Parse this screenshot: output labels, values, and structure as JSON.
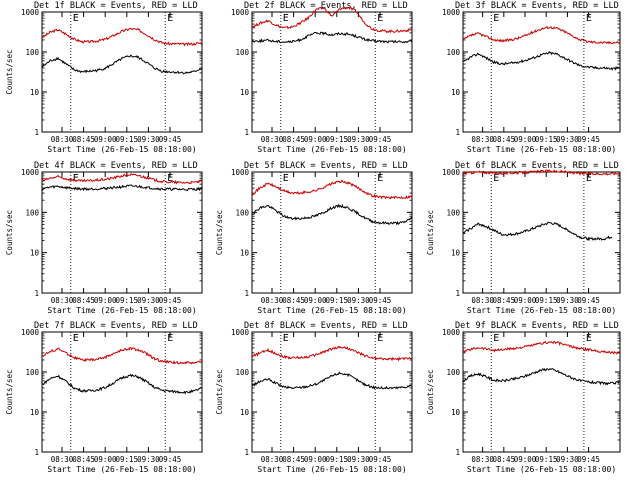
{
  "chart_data": [
    {
      "type": "line",
      "title": "Det 1f BLACK = Events, RED = LLD",
      "xlabel": "Start Time (26-Feb-15 08:18:00)",
      "ylabel": "Counts/sec",
      "yscale": "log",
      "ylim": [
        1,
        1000
      ],
      "x_ticks": [
        "08:30",
        "08:45",
        "09:00",
        "09:15",
        "09:30",
        "09:45"
      ],
      "y_ticks": [
        "1",
        "10",
        "100",
        "1000"
      ],
      "marker_labels": [
        "E",
        "E"
      ],
      "series": [
        {
          "color": "#cc0000",
          "x": [
            0,
            0.05,
            0.1,
            0.15,
            0.2,
            0.25,
            0.3,
            0.35,
            0.4,
            0.45,
            0.5,
            0.55,
            0.6,
            0.65,
            0.7,
            0.75,
            0.8,
            0.85,
            0.9,
            0.95,
            1
          ],
          "values": [
            230,
            310,
            360,
            280,
            210,
            180,
            180,
            190,
            210,
            260,
            330,
            380,
            360,
            280,
            210,
            170,
            160,
            160,
            155,
            160,
            170
          ]
        },
        {
          "color": "#000000",
          "x": [
            0,
            0.05,
            0.1,
            0.15,
            0.2,
            0.25,
            0.3,
            0.35,
            0.4,
            0.45,
            0.5,
            0.55,
            0.6,
            0.65,
            0.7,
            0.75,
            0.8,
            0.85,
            0.9,
            0.95,
            1
          ],
          "values": [
            42,
            60,
            70,
            50,
            36,
            32,
            33,
            35,
            40,
            52,
            68,
            80,
            74,
            56,
            40,
            33,
            32,
            31,
            30,
            32,
            40
          ]
        }
      ]
    },
    {
      "type": "line",
      "title": "Det 2f BLACK = Events, RED = LLD",
      "xlabel": "Start Time (26-Feb-15 08:18:00)",
      "ylabel": "",
      "yscale": "log",
      "ylim": [
        1,
        1000
      ],
      "x_ticks": [
        "08:30",
        "08:45",
        "09:00",
        "09:15",
        "09:30",
        "09:45"
      ],
      "y_ticks": [
        "1",
        "10",
        "100",
        "1000"
      ],
      "marker_labels": [
        "E",
        "E"
      ],
      "series": [
        {
          "color": "#cc0000",
          "x": [
            0,
            0.05,
            0.1,
            0.15,
            0.2,
            0.25,
            0.3,
            0.35,
            0.4,
            0.45,
            0.5,
            0.55,
            0.6,
            0.65,
            0.7,
            0.75,
            0.8,
            0.85,
            0.9,
            0.95,
            1
          ],
          "values": [
            420,
            520,
            610,
            470,
            400,
            420,
            520,
            700,
            1150,
            1250,
            780,
            1200,
            1300,
            1050,
            560,
            380,
            340,
            330,
            330,
            340,
            360
          ]
        },
        {
          "color": "#000000",
          "x": [
            0,
            0.05,
            0.1,
            0.15,
            0.2,
            0.25,
            0.3,
            0.35,
            0.4,
            0.45,
            0.5,
            0.55,
            0.6,
            0.65,
            0.7,
            0.75,
            0.8,
            0.85,
            0.9,
            0.95,
            1
          ],
          "values": [
            185,
            190,
            195,
            185,
            180,
            180,
            200,
            250,
            300,
            290,
            270,
            290,
            280,
            250,
            210,
            190,
            185,
            180,
            180,
            180,
            182
          ]
        }
      ]
    },
    {
      "type": "line",
      "title": "Det 3f BLACK = Events, RED = LLD",
      "xlabel": "Start Time (26-Feb-15 08:18:00)",
      "ylabel": "",
      "yscale": "log",
      "ylim": [
        1,
        1000
      ],
      "x_ticks": [
        "08:30",
        "08:45",
        "09:00",
        "09:15",
        "09:30",
        "09:45"
      ],
      "y_ticks": [
        "1",
        "10",
        "100",
        "1000"
      ],
      "marker_labels": [
        "E",
        "E"
      ],
      "series": [
        {
          "color": "#cc0000",
          "x": [
            0,
            0.05,
            0.1,
            0.15,
            0.2,
            0.25,
            0.3,
            0.35,
            0.4,
            0.45,
            0.5,
            0.55,
            0.6,
            0.65,
            0.7,
            0.75,
            0.8,
            0.85,
            0.9,
            0.95,
            1
          ],
          "values": [
            200,
            260,
            290,
            240,
            200,
            190,
            200,
            220,
            260,
            320,
            380,
            420,
            390,
            320,
            250,
            200,
            180,
            175,
            170,
            172,
            175
          ]
        },
        {
          "color": "#000000",
          "x": [
            0,
            0.05,
            0.1,
            0.15,
            0.2,
            0.25,
            0.3,
            0.35,
            0.4,
            0.45,
            0.5,
            0.55,
            0.6,
            0.65,
            0.7,
            0.75,
            0.8,
            0.85,
            0.9,
            0.95,
            1
          ],
          "values": [
            55,
            75,
            90,
            70,
            55,
            50,
            52,
            56,
            62,
            72,
            85,
            95,
            88,
            70,
            55,
            45,
            42,
            40,
            40,
            38,
            40
          ]
        }
      ]
    },
    {
      "type": "line",
      "title": "Det 4f BLACK = Events, RED = LLD",
      "xlabel": "Start Time (26-Feb-15 08:18:00)",
      "ylabel": "Counts/sec",
      "yscale": "log",
      "ylim": [
        1,
        1000
      ],
      "x_ticks": [
        "08:30",
        "08:45",
        "09:00",
        "09:15",
        "09:30",
        "09:45"
      ],
      "y_ticks": [
        "1",
        "10",
        "100",
        "1000"
      ],
      "marker_labels": [
        "E",
        "E"
      ],
      "series": [
        {
          "color": "#cc0000",
          "x": [
            0,
            0.05,
            0.1,
            0.15,
            0.2,
            0.25,
            0.3,
            0.35,
            0.4,
            0.45,
            0.5,
            0.55,
            0.6,
            0.65,
            0.7,
            0.75,
            0.8,
            0.85,
            0.9,
            0.95,
            1
          ],
          "values": [
            600,
            700,
            760,
            680,
            620,
            600,
            610,
            630,
            660,
            720,
            800,
            860,
            820,
            730,
            640,
            580,
            560,
            550,
            545,
            550,
            600
          ]
        },
        {
          "color": "#000000",
          "x": [
            0,
            0.05,
            0.1,
            0.15,
            0.2,
            0.25,
            0.3,
            0.35,
            0.4,
            0.45,
            0.5,
            0.55,
            0.6,
            0.65,
            0.7,
            0.75,
            0.8,
            0.85,
            0.9,
            0.95,
            1
          ],
          "values": [
            380,
            420,
            440,
            410,
            390,
            380,
            380,
            385,
            395,
            410,
            430,
            450,
            440,
            415,
            395,
            380,
            375,
            372,
            370,
            372,
            380
          ]
        }
      ]
    },
    {
      "type": "line",
      "title": "Det 5f BLACK = Events, RED = LLD",
      "xlabel": "Start Time (26-Feb-15 08:18:00)",
      "ylabel": "Counts/sec",
      "yscale": "log",
      "ylim": [
        1,
        1000
      ],
      "x_ticks": [
        "08:30",
        "08:45",
        "09:00",
        "09:15",
        "09:30",
        "09:45"
      ],
      "y_ticks": [
        "1",
        "10",
        "100",
        "1000"
      ],
      "marker_labels": [
        "E",
        "E"
      ],
      "series": [
        {
          "color": "#cc0000",
          "x": [
            0,
            0.05,
            0.1,
            0.15,
            0.2,
            0.25,
            0.3,
            0.35,
            0.4,
            0.45,
            0.5,
            0.55,
            0.6,
            0.65,
            0.7,
            0.75,
            0.8,
            0.85,
            0.9,
            0.95,
            1
          ],
          "values": [
            280,
            400,
            520,
            430,
            340,
            300,
            300,
            320,
            350,
            420,
            520,
            580,
            540,
            430,
            330,
            260,
            240,
            235,
            230,
            235,
            250
          ]
        },
        {
          "color": "#000000",
          "x": [
            0,
            0.05,
            0.1,
            0.15,
            0.2,
            0.25,
            0.3,
            0.35,
            0.4,
            0.45,
            0.5,
            0.55,
            0.6,
            0.65,
            0.7,
            0.75,
            0.8,
            0.85,
            0.9,
            0.95,
            1
          ],
          "values": [
            90,
            130,
            145,
            110,
            80,
            70,
            70,
            74,
            82,
            100,
            130,
            145,
            130,
            100,
            75,
            60,
            55,
            54,
            54,
            56,
            75
          ]
        }
      ]
    },
    {
      "type": "line",
      "title": "Det 6f BLACK = Events, RED = LLD",
      "xlabel": "Start Time (26-Feb-15 08:18:00)",
      "ylabel": "Counts/sec",
      "yscale": "log",
      "ylim": [
        1,
        1000
      ],
      "x_ticks": [
        "08:30",
        "08:45",
        "09:00",
        "09:15",
        "09:30",
        "09:45"
      ],
      "y_ticks": [
        "1",
        "10",
        "100",
        "1000"
      ],
      "marker_labels": [
        "E",
        "E"
      ],
      "series": [
        {
          "color": "#cc0000",
          "x": [
            0,
            0.05,
            0.1,
            0.15,
            0.2,
            0.25,
            0.3,
            0.35,
            0.4,
            0.45,
            0.5,
            0.55,
            0.6,
            0.65,
            0.7,
            0.75,
            0.8,
            0.85,
            0.9,
            0.95,
            1
          ],
          "values": [
            920,
            960,
            1000,
            970,
            940,
            930,
            940,
            960,
            980,
            1000,
            1040,
            1060,
            1040,
            1000,
            960,
            920,
            910,
            905,
            900,
            910,
            920
          ]
        },
        {
          "color": "#000000",
          "x": [
            0,
            0.03,
            0.1,
            0.15,
            0.2,
            0.25,
            0.3,
            0.35,
            0.4,
            0.45,
            0.5,
            0.55,
            0.6,
            0.65,
            0.7,
            0.75,
            0.8,
            0.85,
            0.9,
            0.95
          ],
          "values": [
            30,
            36,
            52,
            44,
            35,
            28,
            28,
            30,
            34,
            40,
            48,
            55,
            50,
            40,
            30,
            24,
            22,
            22,
            22,
            25
          ]
        }
      ]
    },
    {
      "type": "line",
      "title": "Det 7f BLACK = Events, RED = LLD",
      "xlabel": "Start Time (26-Feb-15 08:18:00)",
      "ylabel": "Counts/sec",
      "yscale": "log",
      "ylim": [
        1,
        1000
      ],
      "x_ticks": [
        "08:30",
        "08:45",
        "09:00",
        "09:15",
        "09:30",
        "09:45"
      ],
      "y_ticks": [
        "1",
        "10",
        "100",
        "1000"
      ],
      "marker_labels": [
        "E",
        "E"
      ],
      "series": [
        {
          "color": "#cc0000",
          "x": [
            0,
            0.05,
            0.1,
            0.15,
            0.2,
            0.25,
            0.3,
            0.35,
            0.4,
            0.45,
            0.5,
            0.55,
            0.6,
            0.65,
            0.7,
            0.75,
            0.8,
            0.85,
            0.9,
            0.95,
            1
          ],
          "values": [
            250,
            320,
            380,
            300,
            230,
            200,
            200,
            210,
            240,
            290,
            350,
            390,
            360,
            290,
            220,
            185,
            175,
            172,
            170,
            172,
            180
          ]
        },
        {
          "color": "#000000",
          "x": [
            0,
            0.05,
            0.1,
            0.15,
            0.2,
            0.25,
            0.3,
            0.35,
            0.4,
            0.45,
            0.5,
            0.55,
            0.6,
            0.65,
            0.7,
            0.75,
            0.8,
            0.85,
            0.9,
            0.95,
            1
          ],
          "values": [
            48,
            68,
            80,
            58,
            40,
            34,
            34,
            36,
            42,
            54,
            72,
            82,
            76,
            58,
            42,
            35,
            33,
            32,
            31,
            33,
            40
          ]
        }
      ]
    },
    {
      "type": "line",
      "title": "Det 8f BLACK = Events, RED = LLD",
      "xlabel": "Start Time (26-Feb-15 08:18:00)",
      "ylabel": "Counts/sec",
      "yscale": "log",
      "ylim": [
        1,
        1000
      ],
      "x_ticks": [
        "08:30",
        "08:45",
        "09:00",
        "09:15",
        "09:30",
        "09:45"
      ],
      "y_ticks": [
        "1",
        "10",
        "100",
        "1000"
      ],
      "marker_labels": [
        "E",
        "E"
      ],
      "series": [
        {
          "color": "#cc0000",
          "x": [
            0,
            0.05,
            0.1,
            0.15,
            0.2,
            0.25,
            0.3,
            0.35,
            0.4,
            0.45,
            0.5,
            0.55,
            0.6,
            0.65,
            0.7,
            0.75,
            0.8,
            0.85,
            0.9,
            0.95,
            1
          ],
          "values": [
            240,
            300,
            350,
            290,
            240,
            225,
            230,
            240,
            270,
            320,
            380,
            420,
            390,
            320,
            260,
            225,
            215,
            210,
            210,
            215,
            230
          ]
        },
        {
          "color": "#000000",
          "x": [
            0,
            0.05,
            0.1,
            0.15,
            0.2,
            0.25,
            0.3,
            0.35,
            0.4,
            0.45,
            0.5,
            0.55,
            0.6,
            0.65,
            0.7,
            0.75,
            0.8,
            0.85,
            0.9,
            0.95,
            1
          ],
          "values": [
            45,
            58,
            66,
            52,
            42,
            40,
            41,
            44,
            50,
            62,
            80,
            95,
            85,
            65,
            50,
            42,
            40,
            40,
            40,
            42,
            46
          ]
        }
      ]
    },
    {
      "type": "line",
      "title": "Det 9f BLACK = Events, RED = LLD",
      "xlabel": "Start Time (26-Feb-15 08:18:00)",
      "ylabel": "Counts/sec",
      "yscale": "log",
      "ylim": [
        1,
        1000
      ],
      "x_ticks": [
        "08:30",
        "08:45",
        "09:00",
        "09:15",
        "09:30",
        "09:45"
      ],
      "y_ticks": [
        "1",
        "10",
        "100",
        "1000"
      ],
      "marker_labels": [
        "E",
        "E"
      ],
      "series": [
        {
          "color": "#cc0000",
          "x": [
            0,
            0.05,
            0.1,
            0.15,
            0.2,
            0.25,
            0.3,
            0.35,
            0.4,
            0.45,
            0.5,
            0.55,
            0.6,
            0.65,
            0.7,
            0.75,
            0.8,
            0.85,
            0.9,
            0.95,
            1
          ],
          "values": [
            320,
            370,
            410,
            380,
            350,
            360,
            380,
            400,
            430,
            470,
            520,
            560,
            540,
            480,
            420,
            380,
            360,
            340,
            320,
            310,
            300
          ]
        },
        {
          "color": "#000000",
          "x": [
            0,
            0.05,
            0.1,
            0.15,
            0.2,
            0.25,
            0.3,
            0.35,
            0.4,
            0.45,
            0.5,
            0.55,
            0.6,
            0.65,
            0.7,
            0.75,
            0.8,
            0.85,
            0.9,
            0.95,
            1
          ],
          "values": [
            60,
            80,
            90,
            75,
            62,
            60,
            64,
            70,
            80,
            95,
            112,
            120,
            105,
            85,
            70,
            60,
            56,
            54,
            52,
            52,
            55
          ]
        }
      ]
    }
  ]
}
